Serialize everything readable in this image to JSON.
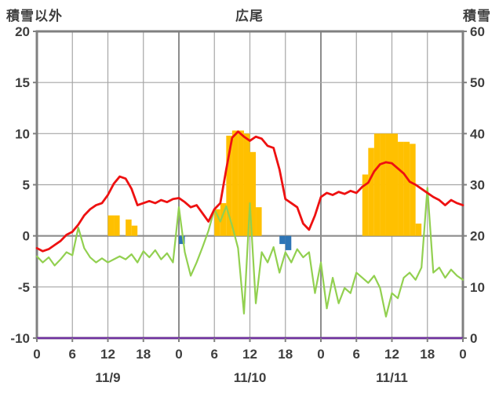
{
  "chart_data": {
    "type": "line+bar",
    "title": "広尾",
    "left_axis": {
      "label": "積雪以外",
      "min": -10,
      "max": 20,
      "ticks": [
        20,
        15,
        10,
        5,
        0,
        -5,
        -10
      ]
    },
    "right_axis": {
      "label": "積雪",
      "min": 0,
      "max": 60,
      "ticks": [
        60,
        50,
        40,
        30,
        20,
        10,
        0
      ]
    },
    "x_axis": {
      "min_hour": 0,
      "max_hour": 72,
      "tick_every": 6,
      "hour_labels": [
        "0",
        "6",
        "12",
        "18",
        "0",
        "6",
        "12",
        "18",
        "0",
        "6",
        "12",
        "18",
        "0"
      ],
      "date_labels": [
        {
          "text": "11/9",
          "hour": 12
        },
        {
          "text": "11/10",
          "hour": 36
        },
        {
          "text": "11/11",
          "hour": 60
        }
      ]
    },
    "series": [
      {
        "name": "snowfall-bars-yellow",
        "type": "bar",
        "axis": "left",
        "base": 0,
        "color": "#ffc000",
        "bars": [
          {
            "hour": 12,
            "value": 2.0
          },
          {
            "hour": 13,
            "value": 2.0
          },
          {
            "hour": 15,
            "value": 1.6
          },
          {
            "hour": 16,
            "value": 1.0
          },
          {
            "hour": 30,
            "value": 2.6
          },
          {
            "hour": 31,
            "value": 3.2
          },
          {
            "hour": 32,
            "value": 9.8
          },
          {
            "hour": 33,
            "value": 10.3
          },
          {
            "hour": 34,
            "value": 10.3
          },
          {
            "hour": 35,
            "value": 10.0
          },
          {
            "hour": 36,
            "value": 8.2
          },
          {
            "hour": 37,
            "value": 2.8
          },
          {
            "hour": 55,
            "value": 6.0
          },
          {
            "hour": 56,
            "value": 8.6
          },
          {
            "hour": 57,
            "value": 10.0
          },
          {
            "hour": 58,
            "value": 10.0
          },
          {
            "hour": 59,
            "value": 10.0
          },
          {
            "hour": 60,
            "value": 10.0
          },
          {
            "hour": 61,
            "value": 9.2
          },
          {
            "hour": 62,
            "value": 9.2
          },
          {
            "hour": 63,
            "value": 9.0
          },
          {
            "hour": 64,
            "value": 1.2
          }
        ]
      },
      {
        "name": "rain-bars-blue",
        "type": "bar",
        "axis": "left",
        "base": 0,
        "color": "#2e75b6",
        "bars": [
          {
            "hour": 24,
            "value": -0.8
          },
          {
            "hour": 41,
            "value": -0.8
          },
          {
            "hour": 42,
            "value": -1.4
          }
        ]
      },
      {
        "name": "snow-depth-line-purple",
        "type": "line",
        "axis": "left",
        "color": "#7030a0",
        "width": 2.5,
        "x": [
          0,
          72
        ],
        "y": [
          -10,
          -10
        ]
      },
      {
        "name": "green-line",
        "type": "line",
        "axis": "left",
        "color": "#92d050",
        "width": 2.2,
        "y": [
          -2.0,
          -2.6,
          -2.1,
          -2.9,
          -2.3,
          -1.6,
          -1.9,
          0.8,
          -1.2,
          -2.1,
          -2.6,
          -2.2,
          -2.6,
          -2.3,
          -2.0,
          -2.3,
          -1.8,
          -2.6,
          -1.5,
          -2.1,
          -1.4,
          -2.3,
          -1.7,
          -2.6,
          2.8,
          -1.6,
          -3.9,
          -2.6,
          -1.1,
          0.5,
          2.6,
          1.4,
          2.9,
          1.0,
          -1.2,
          -7.6,
          3.2,
          -6.6,
          -1.6,
          -2.6,
          -1.1,
          -3.6,
          -1.6,
          -2.6,
          -1.3,
          -2.1,
          -1.6,
          -5.6,
          -2.6,
          -7.1,
          -4.1,
          -6.6,
          -5.1,
          -5.6,
          -3.6,
          -4.1,
          -4.6,
          -3.9,
          -5.1,
          -7.9,
          -5.6,
          -6.1,
          -4.1,
          -3.6,
          -4.3,
          -3.1,
          4.7,
          -3.6,
          -3.1,
          -4.1,
          -3.3,
          -3.9,
          -4.3
        ]
      },
      {
        "name": "temperature-line-red",
        "type": "line",
        "axis": "left",
        "color": "#ee1111",
        "width": 2.8,
        "y": [
          -1.2,
          -1.5,
          -1.3,
          -0.9,
          -0.5,
          0.1,
          0.4,
          1.1,
          2.0,
          2.6,
          3.0,
          3.2,
          4.0,
          5.1,
          5.8,
          5.6,
          4.6,
          3.0,
          3.2,
          3.4,
          3.2,
          3.5,
          3.3,
          3.6,
          3.7,
          3.3,
          2.8,
          3.0,
          2.2,
          1.4,
          2.6,
          3.2,
          6.5,
          9.6,
          10.2,
          9.7,
          9.3,
          9.7,
          9.5,
          8.8,
          8.6,
          6.5,
          3.6,
          3.2,
          2.8,
          1.2,
          0.6,
          2.0,
          3.8,
          4.2,
          4.0,
          4.3,
          4.1,
          4.4,
          4.2,
          4.8,
          5.2,
          6.3,
          7.0,
          7.2,
          7.1,
          6.6,
          6.1,
          5.3,
          5.0,
          4.6,
          4.2,
          3.8,
          3.5,
          3.0,
          3.5,
          3.2,
          3.0
        ]
      }
    ]
  }
}
